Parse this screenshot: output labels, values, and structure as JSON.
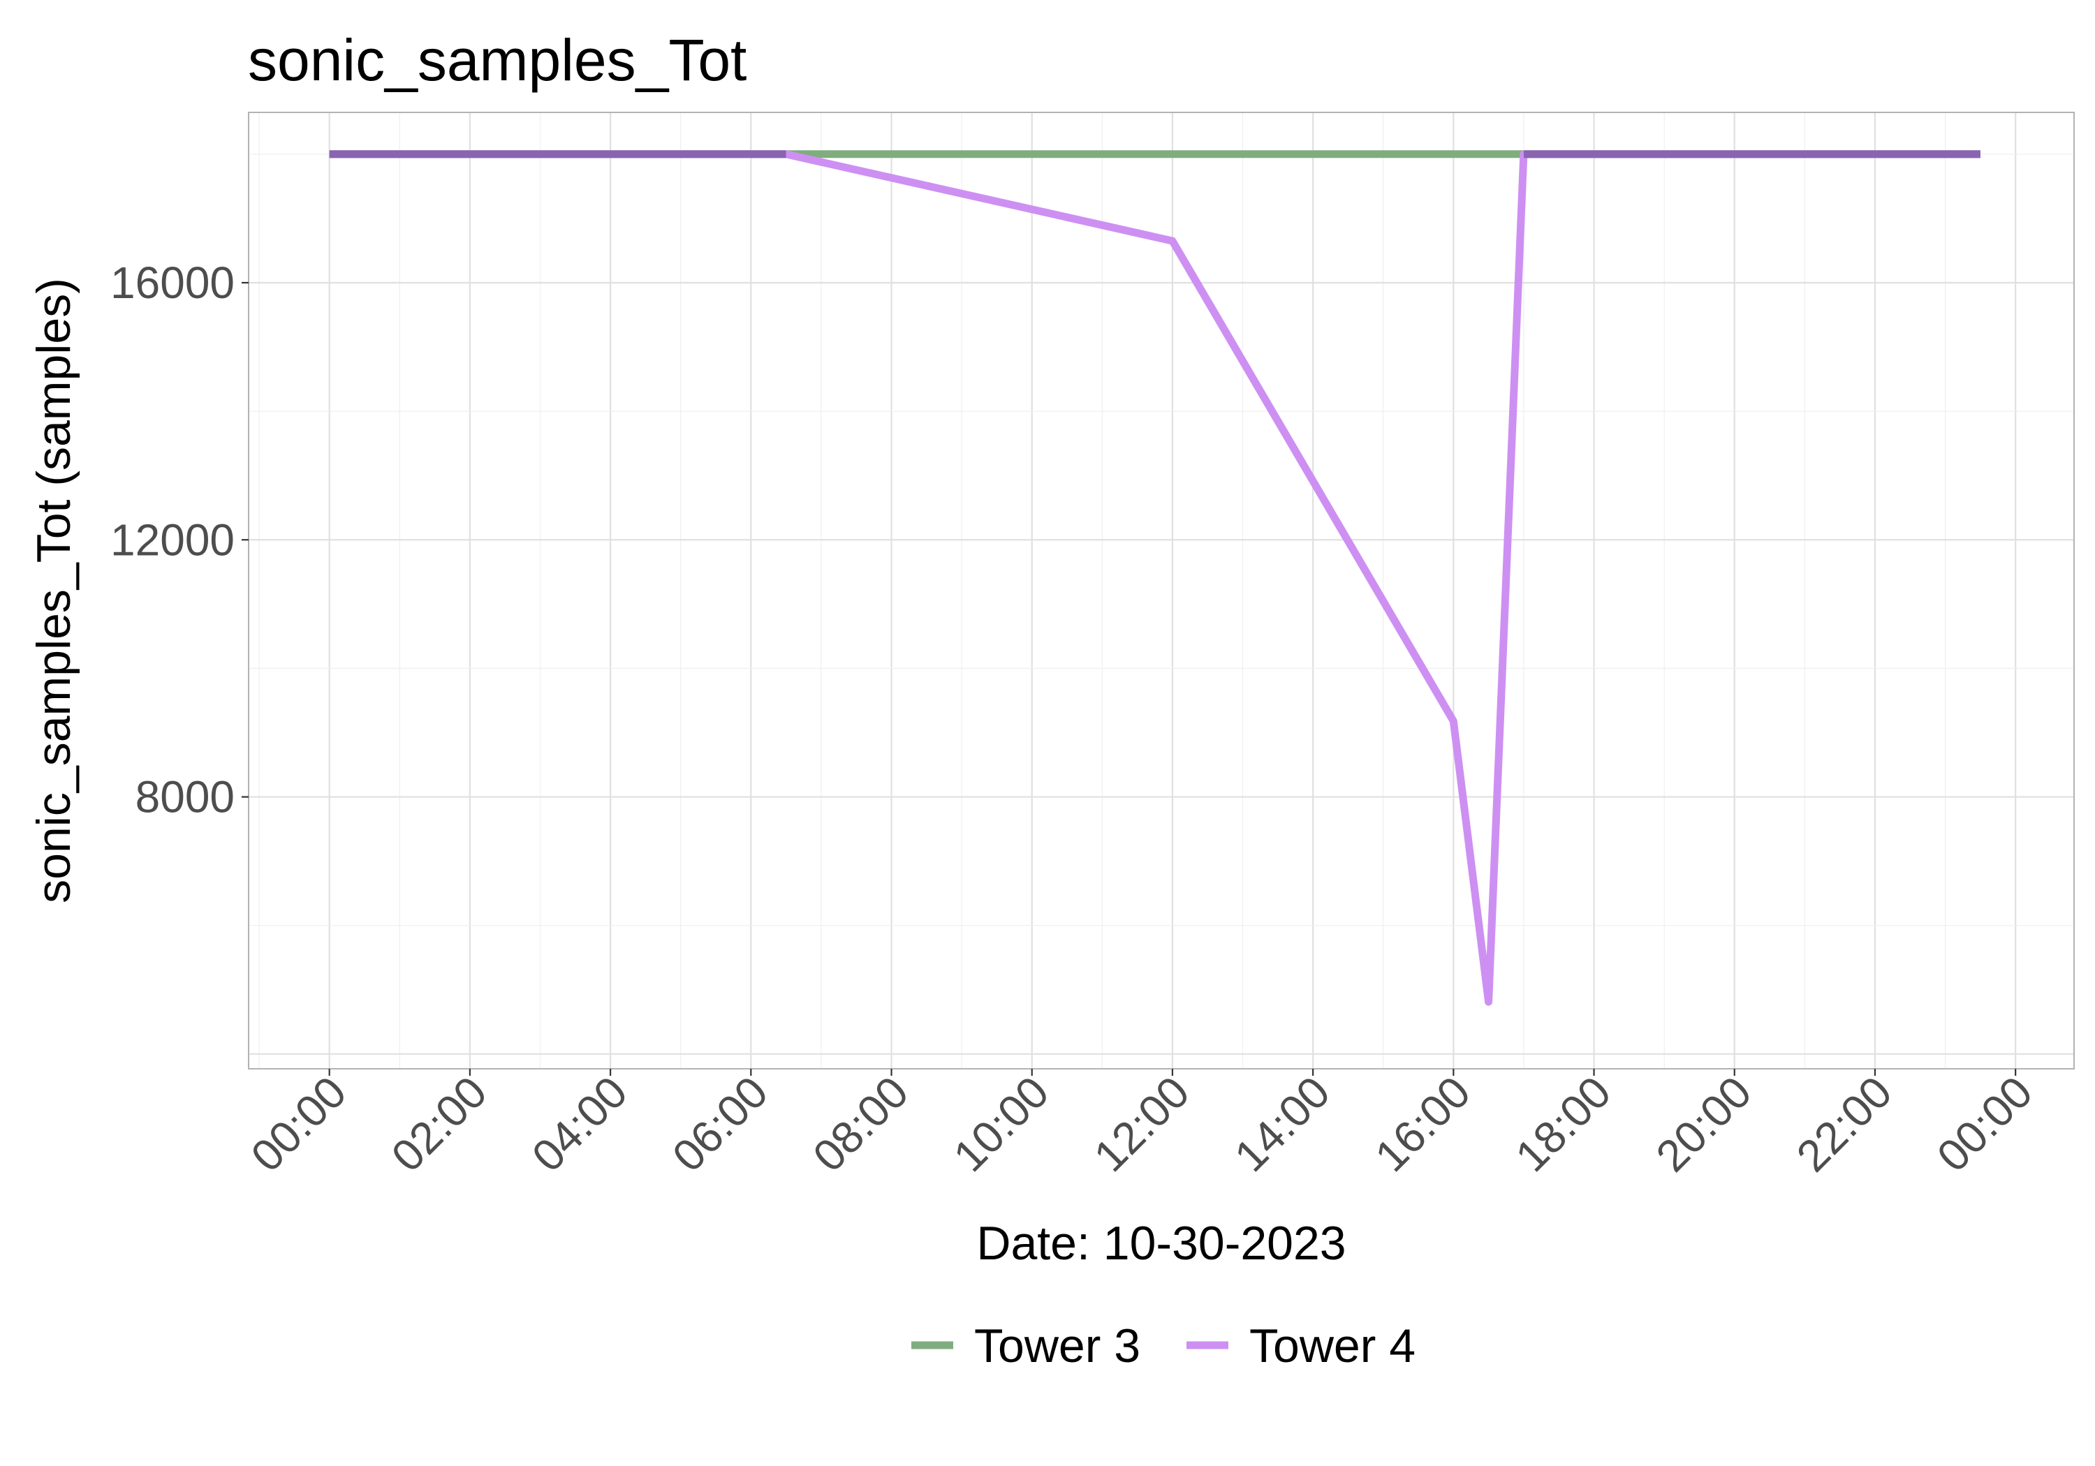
{
  "chart_data": {
    "type": "line",
    "title": "sonic_samples_Tot",
    "xlabel": "Date: 10-30-2023",
    "ylabel": "sonic_samples_Tot (samples)",
    "x_ticks": [
      "00:00",
      "02:00",
      "04:00",
      "06:00",
      "08:00",
      "10:00",
      "12:00",
      "14:00",
      "16:00",
      "18:00",
      "20:00",
      "22:00",
      "00:00"
    ],
    "y_ticks": [
      8000,
      12000,
      16000
    ],
    "xlim": [
      "2023-10-29 22:51",
      "2023-10-31 00:50"
    ],
    "ylim": [
      3770,
      18650
    ],
    "grid": true,
    "legend_position": "bottom",
    "series": [
      {
        "name": "Tower 3",
        "color": "#7fad7f",
        "x": [
          "2023-10-30 00:00",
          "2023-10-30 06:30",
          "2023-10-30 12:00",
          "2023-10-30 16:00",
          "2023-10-30 16:30",
          "2023-10-30 17:00",
          "2023-10-30 23:30"
        ],
        "y": [
          18000,
          18000,
          18000,
          18000,
          18000,
          18000,
          18000
        ]
      },
      {
        "name": "Tower 4",
        "color": "#cd90f2",
        "x": [
          "2023-10-30 00:00",
          "2023-10-30 06:30",
          "2023-10-30 12:00",
          "2023-10-30 16:00",
          "2023-10-30 16:30",
          "2023-10-30 17:00",
          "2023-10-30 23:30"
        ],
        "y": [
          18000,
          18000,
          16650,
          9180,
          4810,
          18000,
          18000
        ]
      }
    ],
    "overlap_color": "#8a64b0"
  }
}
